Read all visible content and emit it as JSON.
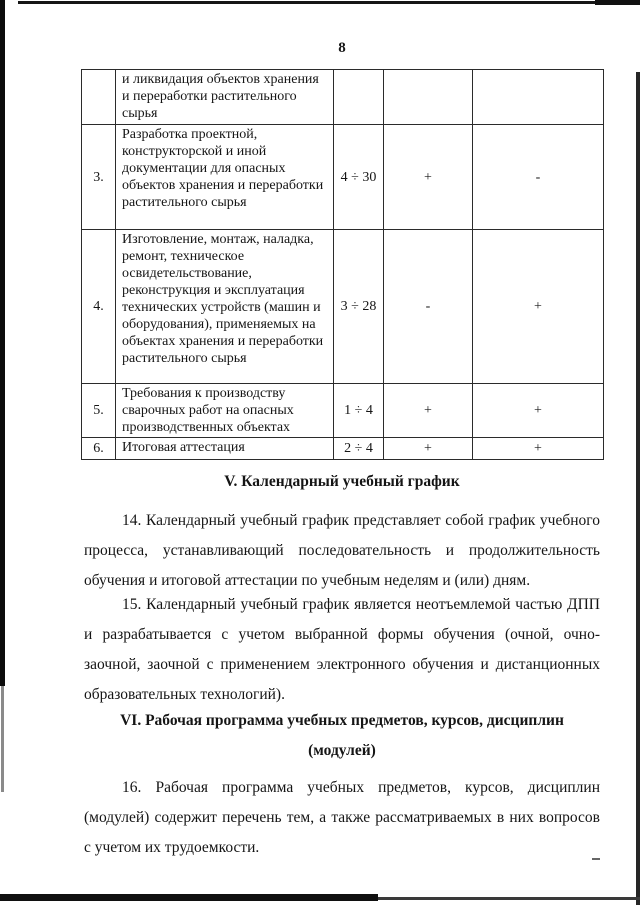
{
  "page_number": "8",
  "table": {
    "rows": [
      {
        "num": "",
        "name": "и ликвидация объектов хранения и переработки растительного сырья",
        "hours": "",
        "attest1": "",
        "attest2": ""
      },
      {
        "num": "3.",
        "name": "Разработка проектной, конструкторской и иной документации для опасных объектов хранения и переработки растительного сырья",
        "hours": "4 ÷ 30",
        "attest1": "+",
        "attest2": "-"
      },
      {
        "num": "4.",
        "name": "Изготовление, монтаж, наладка, ремонт, техническое освидетельствование, реконструкция и эксплуатация технических устройств (машин и оборудования), применяемых на объектах хранения и переработки растительного сырья",
        "hours": "3 ÷ 28",
        "attest1": "-",
        "attest2": "+"
      },
      {
        "num": "5.",
        "name": "Требования к производству сварочных работ на опасных производственных объектах",
        "hours": "1 ÷ 4",
        "attest1": "+",
        "attest2": "+"
      },
      {
        "num": "6.",
        "name": "Итоговая аттестация",
        "hours": "2 ÷ 4",
        "attest1": "+",
        "attest2": "+"
      }
    ]
  },
  "section_v": {
    "heading": "V. Календарный учебный график",
    "para_14_lines": [
      "14. Календарный учебный график представляет собой график учебного",
      "процесса, устанавливающий последовательность и продолжительность",
      "обучения и итоговой аттестации по учебным неделям и (или) дням."
    ],
    "para_15_lines": [
      "15. Календарный учебный график является неотъемлемой частью ДПП",
      "и разрабатывается с учетом выбранной формы обучения (очной, очно-",
      "заочной, заочной с применением электронного обучения и дистанционных",
      "образовательных технологий)."
    ]
  },
  "section_vi": {
    "heading_lines": [
      "VI. Рабочая программа учебных предметов, курсов, дисциплин",
      "(модулей)"
    ],
    "para_16_lines": [
      "16. Рабочая программа учебных предметов, курсов, дисциплин",
      "(модулей) содержит перечень тем, а также рассматриваемых в них вопросов",
      "с учетом их трудоемкости."
    ]
  }
}
